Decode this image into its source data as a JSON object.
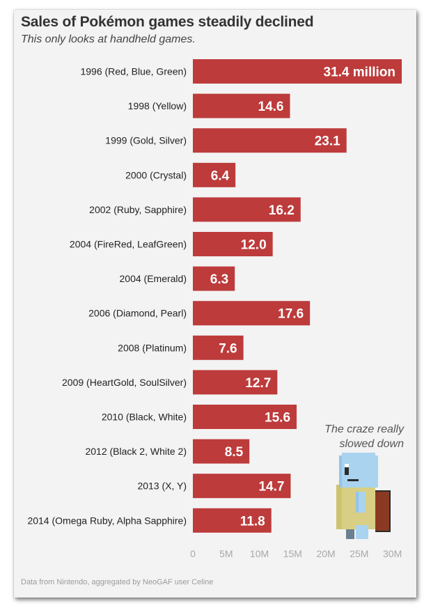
{
  "title": "Sales of Pokémon games steadily declined",
  "subtitle": "This only looks at handheld games.",
  "source": "Data from Nintendo, aggregated by NeoGAF user Celine",
  "annotation": "The craze really slowed down",
  "colors": {
    "bar": "#bd3b3b",
    "bar_label": "#ffffff",
    "category_text": "#222222",
    "tick_text": "#a8a8a8",
    "background": "#f3f3f3"
  },
  "chart_data": {
    "type": "bar",
    "orientation": "horizontal",
    "title": "Sales of Pokémon games steadily declined",
    "subtitle": "This only looks at handheld games.",
    "xlabel": "",
    "ylabel": "",
    "xlim": [
      0,
      31.4
    ],
    "grid": false,
    "ticks": [
      0,
      5,
      10,
      15,
      20,
      25,
      30
    ],
    "tick_labels": [
      "0",
      "5M",
      "10M",
      "15M",
      "20M",
      "25M",
      "30M"
    ],
    "categories": [
      "1996 (Red, Blue, Green)",
      "1998 (Yellow)",
      "1999 (Gold, Silver)",
      "2000 (Crystal)",
      "2002 (Ruby, Sapphire)",
      "2004 (FireRed, LeafGreen)",
      "2004 (Emerald)",
      "2006 (Diamond, Pearl)",
      "2008 (Platinum)",
      "2009 (HeartGold, SoulSilver)",
      "2010 (Black, White)",
      "2012 (Black 2, White 2)",
      "2013 (X, Y)",
      "2014 (Omega Ruby, Alpha Sapphire)"
    ],
    "values": [
      31.4,
      14.6,
      23.1,
      6.4,
      16.2,
      12.0,
      6.3,
      17.6,
      7.6,
      12.7,
      15.6,
      8.5,
      14.7,
      11.8
    ],
    "value_labels": [
      "31.4 million",
      "14.6",
      "23.1",
      "6.4",
      "16.2",
      "12.0",
      "6.3",
      "17.6",
      "7.6",
      "12.7",
      "15.6",
      "8.5",
      "14.7",
      "11.8"
    ]
  }
}
